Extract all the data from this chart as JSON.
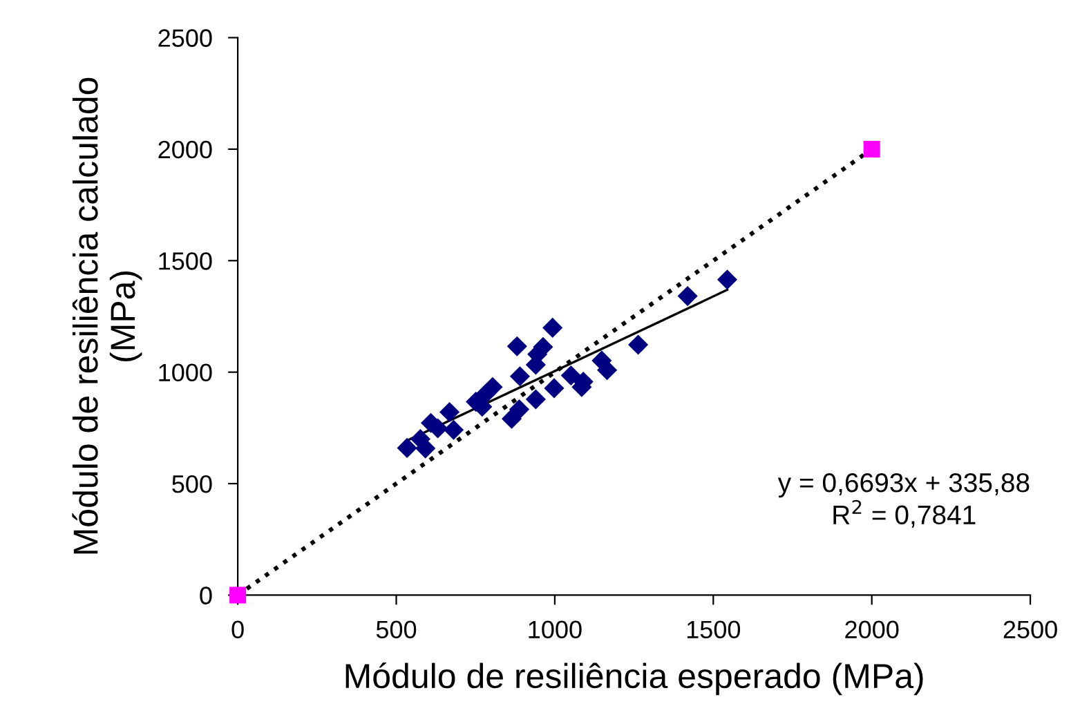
{
  "chart_data": {
    "type": "scatter",
    "xlabel": "Módulo de resiliência esperado (MPa)",
    "ylabel": "Módulo de resiliência calculado\n(MPa)",
    "xlim": [
      0,
      2500
    ],
    "xticks": [
      0,
      500,
      1000,
      1500,
      2000,
      2500
    ],
    "ylim": [
      0,
      2500
    ],
    "yticks": [
      0,
      500,
      1000,
      1500,
      2000,
      2500
    ],
    "grid": false,
    "legend": false,
    "series": [
      {
        "type": "line",
        "color": "#000000",
        "x": [
          0,
          2000
        ],
        "values": [
          0,
          2000
        ],
        "marker": "none",
        "line_style": "dotted"
      },
      {
        "type": "line",
        "color": "#000000",
        "x": [
          534,
          1544
        ],
        "values": [
          693,
          1369
        ],
        "marker": "none",
        "line_style": "solid"
      },
      {
        "color": "#000080",
        "marker": "diamond",
        "x": [
          534,
          576,
          592,
          609,
          631,
          668,
          681,
          751,
          771,
          784,
          804,
          864,
          881,
          890,
          888,
          940,
          940,
          945,
          963,
          993,
          998,
          1051,
          1085,
          1090,
          1148,
          1165,
          1263,
          1419,
          1544
        ],
        "values": [
          660,
          700,
          658,
          772,
          748,
          821,
          741,
          867,
          845,
          905,
          933,
          791,
          1116,
          981,
          833,
          878,
          1033,
          1080,
          1113,
          1199,
          928,
          985,
          933,
          957,
          1052,
          1009,
          1123,
          1341,
          1415
        ]
      },
      {
        "color": "#ff00ff",
        "marker": "square",
        "x": [
          0,
          2000
        ],
        "values": [
          0,
          2000
        ]
      }
    ],
    "annotations": [
      "y = 0,6693x + 335,88\nR$^{2}$ = 0,7841"
    ]
  }
}
